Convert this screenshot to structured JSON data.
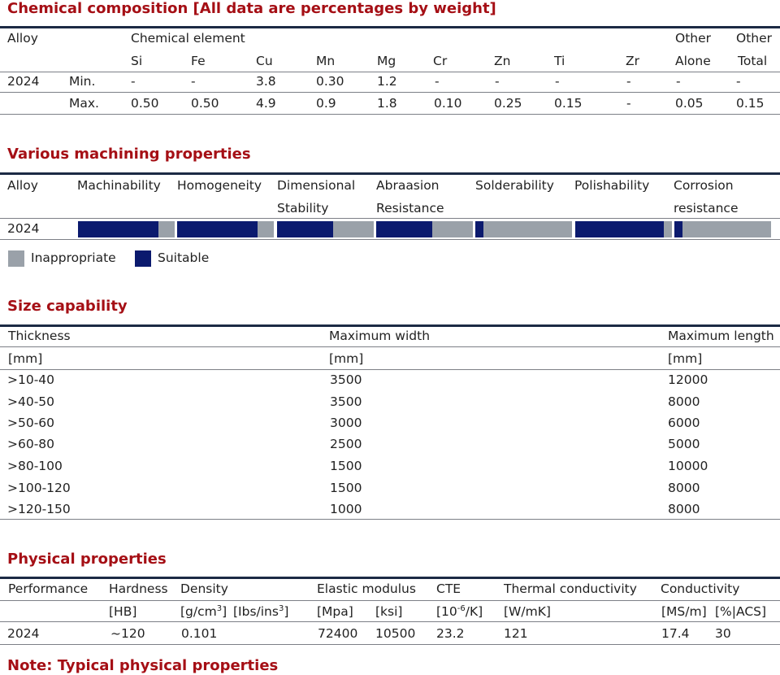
{
  "chem": {
    "title": "Chemical composition [All data are percentages by weight]",
    "alloy_header": "Alloy",
    "element_header": "Chemical element",
    "other_alone": [
      "Other",
      "Alone"
    ],
    "other_total": [
      "Other",
      "Total"
    ],
    "elements": [
      "Si",
      "Fe",
      "Cu",
      "Mn",
      "Mg",
      "Cr",
      "Zn",
      "Ti",
      "Zr"
    ],
    "alloy": "2024",
    "min_label": "Min.",
    "max_label": "Max.",
    "min_values": [
      "-",
      "-",
      "3.8",
      "0.30",
      "1.2",
      "-",
      "-",
      "-",
      "-",
      "-",
      "-"
    ],
    "max_values": [
      "0.50",
      "0.50",
      "4.9",
      "0.9",
      "1.8",
      "0.10",
      "0.25",
      "0.15",
      "-",
      "0.05",
      "0.15"
    ]
  },
  "machining": {
    "title": "Various machining properties",
    "alloy_header": "Alloy",
    "alloy": "2024",
    "properties": [
      {
        "label": [
          "Machinability",
          ""
        ],
        "suitable_fraction": 0.83
      },
      {
        "label": [
          "Homogeneity",
          ""
        ],
        "suitable_fraction": 0.83
      },
      {
        "label": [
          "Dimensional",
          "Stability"
        ],
        "suitable_fraction": 0.58
      },
      {
        "label": [
          "Abraasion",
          "Resistance"
        ],
        "suitable_fraction": 0.58
      },
      {
        "label": [
          "Solderability",
          ""
        ],
        "suitable_fraction": 0.08
      },
      {
        "label": [
          "Polishability",
          ""
        ],
        "suitable_fraction": 0.92
      },
      {
        "label": [
          "Corrosion",
          "resistance"
        ],
        "suitable_fraction": 0.08
      }
    ],
    "legend": {
      "inappropriate": "Inappropriate",
      "suitable": "Suitable"
    },
    "colors": {
      "inappropriate": "#9aa1a9",
      "suitable": "#0b1a6e"
    }
  },
  "size": {
    "title": "Size capability",
    "headers": [
      "Thickness",
      "Maximum width",
      "Maximum length"
    ],
    "units": [
      "[mm]",
      "[mm]",
      "[mm]"
    ],
    "rows": [
      [
        ">10-40",
        "3500",
        "12000"
      ],
      [
        ">40-50",
        "3500",
        "8000"
      ],
      [
        ">50-60",
        "3000",
        "6000"
      ],
      [
        ">60-80",
        "2500",
        "5000"
      ],
      [
        ">80-100",
        "1500",
        "10000"
      ],
      [
        ">100-120",
        "1500",
        "8000"
      ],
      [
        ">120-150",
        "1000",
        "8000"
      ]
    ]
  },
  "physical": {
    "title": "Physical properties",
    "headers": {
      "performance": "Performance",
      "hardness": "Hardness",
      "density": "Density",
      "elastic": "Elastic modulus",
      "cte": "CTE",
      "thermal": "Thermal conductivity",
      "conductivity": "Conductivity"
    },
    "units": {
      "hardness": "[HB]",
      "density_a": "[g/cm",
      "density_a_exp": "3",
      "density_a_end": "]",
      "density_b": "[Ibs/ins",
      "density_b_exp": "3",
      "density_b_end": "]",
      "elastic_a": "[Mpa]",
      "elastic_b": "[ksi]",
      "cte": "[10",
      "cte_exp": "-6",
      "cte_end": "/K]",
      "thermal": "[W/mK]",
      "cond_a": "[MS/m]",
      "cond_b": "[%|ACS]"
    },
    "values": {
      "alloy": "2024",
      "hardness": "~120",
      "density": "0.101",
      "elastic_a": "72400",
      "elastic_b": "10500",
      "cte": "23.2",
      "thermal": "121",
      "cond_a": "17.4",
      "cond_b": "30"
    }
  },
  "note": "Note: Typical physical properties"
}
